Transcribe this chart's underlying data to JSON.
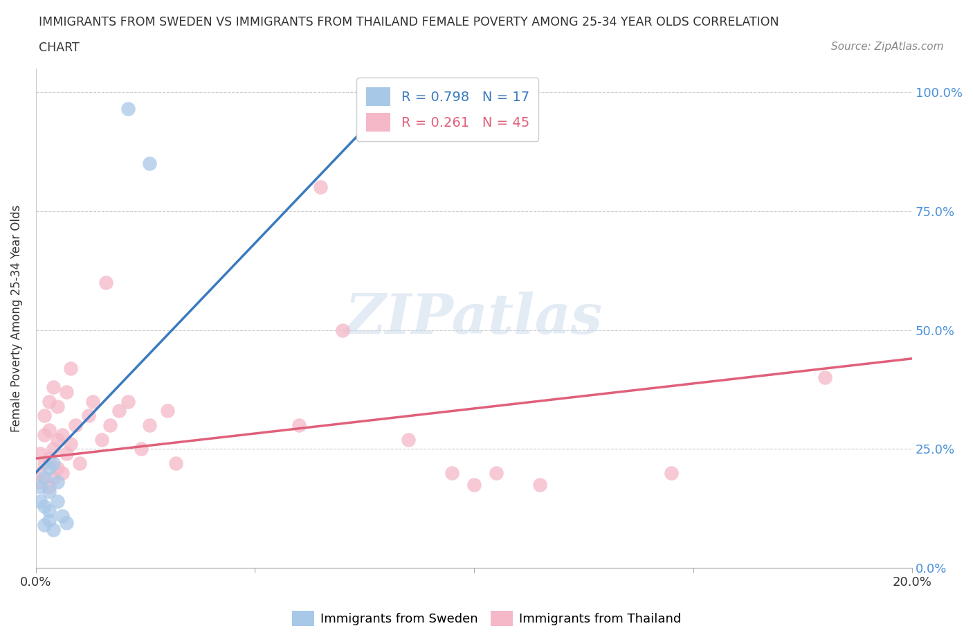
{
  "title_line1": "IMMIGRANTS FROM SWEDEN VS IMMIGRANTS FROM THAILAND FEMALE POVERTY AMONG 25-34 YEAR OLDS CORRELATION",
  "title_line2": "CHART",
  "source": "Source: ZipAtlas.com",
  "ylabel": "Female Poverty Among 25-34 Year Olds",
  "xlim": [
    0.0,
    0.2
  ],
  "ylim": [
    0.0,
    1.05
  ],
  "yticks": [
    0.0,
    0.25,
    0.5,
    0.75,
    1.0
  ],
  "ytick_labels": [
    "0.0%",
    "25.0%",
    "50.0%",
    "75.0%",
    "100.0%"
  ],
  "xticks": [
    0.0,
    0.05,
    0.1,
    0.15,
    0.2
  ],
  "xtick_labels": [
    "0.0%",
    "",
    "",
    "",
    "20.0%"
  ],
  "sweden_color": "#a8c8e8",
  "thailand_color": "#f4b8c8",
  "sweden_line_color": "#3a7abf",
  "thailand_line_color": "#e0607a",
  "sweden_R": "0.798",
  "sweden_N": "17",
  "thailand_R": "0.261",
  "thailand_N": "45",
  "watermark_text": "ZIPatlas",
  "sweden_scatter_x": [
    0.001,
    0.001,
    0.002,
    0.002,
    0.002,
    0.003,
    0.003,
    0.003,
    0.003,
    0.004,
    0.004,
    0.005,
    0.005,
    0.006,
    0.007,
    0.021,
    0.026
  ],
  "sweden_scatter_y": [
    0.14,
    0.17,
    0.09,
    0.13,
    0.19,
    0.12,
    0.16,
    0.21,
    0.1,
    0.08,
    0.22,
    0.14,
    0.18,
    0.11,
    0.095,
    0.965,
    0.85
  ],
  "thailand_scatter_x": [
    0.001,
    0.001,
    0.001,
    0.002,
    0.002,
    0.002,
    0.003,
    0.003,
    0.003,
    0.003,
    0.004,
    0.004,
    0.004,
    0.005,
    0.005,
    0.005,
    0.006,
    0.006,
    0.007,
    0.007,
    0.008,
    0.008,
    0.009,
    0.01,
    0.012,
    0.013,
    0.015,
    0.016,
    0.017,
    0.019,
    0.021,
    0.024,
    0.026,
    0.03,
    0.032,
    0.06,
    0.065,
    0.07,
    0.085,
    0.095,
    0.1,
    0.105,
    0.115,
    0.145,
    0.18
  ],
  "thailand_scatter_y": [
    0.18,
    0.24,
    0.2,
    0.22,
    0.28,
    0.32,
    0.17,
    0.23,
    0.29,
    0.35,
    0.19,
    0.25,
    0.38,
    0.21,
    0.27,
    0.34,
    0.2,
    0.28,
    0.24,
    0.37,
    0.26,
    0.42,
    0.3,
    0.22,
    0.32,
    0.35,
    0.27,
    0.6,
    0.3,
    0.33,
    0.35,
    0.25,
    0.3,
    0.33,
    0.22,
    0.3,
    0.8,
    0.5,
    0.27,
    0.2,
    0.175,
    0.2,
    0.175,
    0.2,
    0.4
  ],
  "sweden_trend_x": [
    0.0,
    0.085
  ],
  "sweden_trend_y": [
    0.2,
    1.02
  ],
  "thailand_trend_x": [
    0.0,
    0.2
  ],
  "thailand_trend_y": [
    0.23,
    0.44
  ]
}
